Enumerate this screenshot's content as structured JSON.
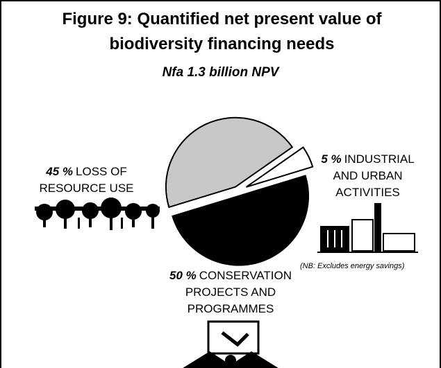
{
  "chart_data": {
    "type": "pie",
    "title": "Figure 9: Quantified net present value of biodiversity financing needs",
    "subtitle": "Nfa 1.3 billion NPV",
    "categories": [
      "LOSS OF RESOURCE USE",
      "INDUSTRIAL AND URBAN ACTIVITIES",
      "CONSERVATION PROJECTS AND PROGRAMMES"
    ],
    "values": [
      45,
      5,
      50
    ],
    "value_labels": [
      "45 %",
      "5 %",
      "50 %"
    ],
    "colors": [
      "#c8c8c8",
      "#ffffff",
      "#000000"
    ],
    "annotation": "(NB: Excludes energy savings)"
  }
}
